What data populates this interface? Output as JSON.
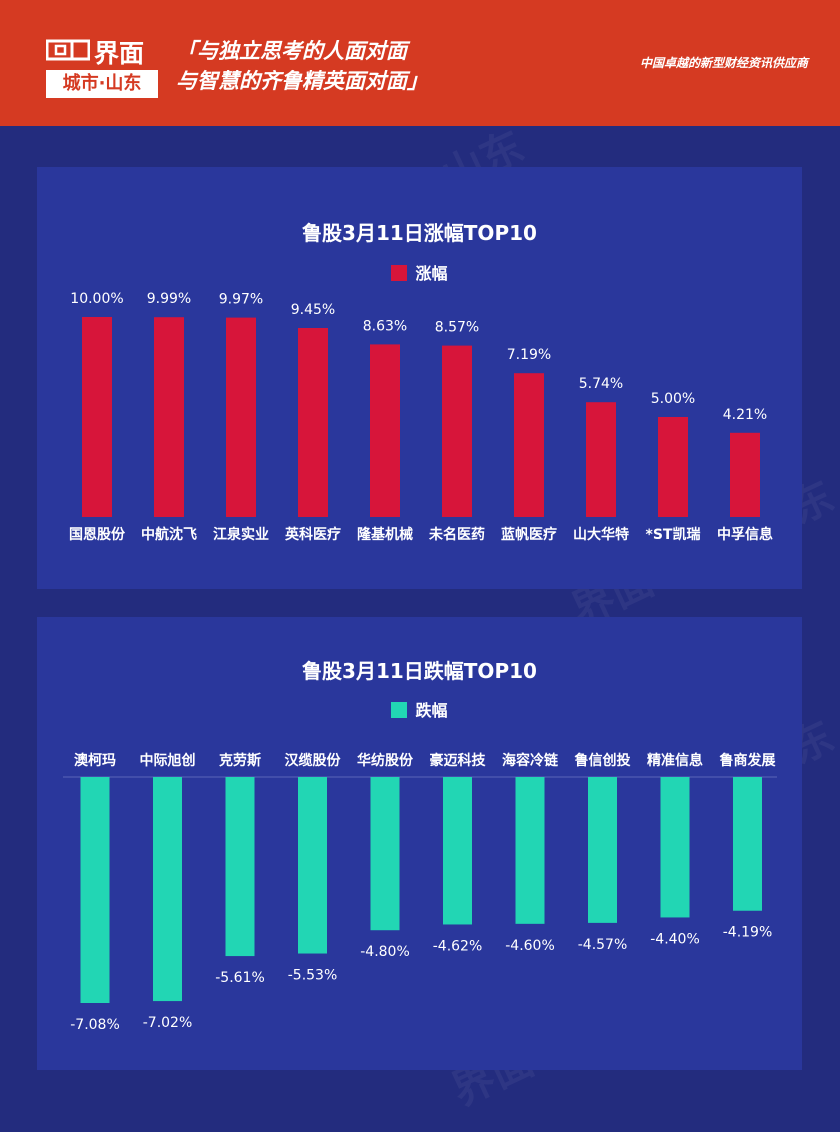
{
  "header": {
    "logo_main": "界面",
    "logo_sub": "城市·山东",
    "slogan_line1": "「与独立思考的人面对面",
    "slogan_line2": "与智慧的齐鲁精英面对面」",
    "tagline": "中国卓越的新型财经资讯供应商",
    "bg_color": "#d53a22"
  },
  "watermark_text": "界面 城市·山东",
  "chart_data": [
    {
      "type": "bar",
      "title": "鲁股3月11日涨幅TOP10",
      "series": [
        {
          "name": "涨幅",
          "color": "#d7153a",
          "values": [
            10.0,
            9.99,
            9.97,
            9.45,
            8.63,
            8.57,
            7.19,
            5.74,
            5.0,
            4.21
          ]
        }
      ],
      "categories": [
        "国恩股份",
        "中航沈飞",
        "江泉实业",
        "英科医疗",
        "隆基机械",
        "未名医药",
        "蓝帆医疗",
        "山大华特",
        "*ST凯瑞",
        "中孚信息"
      ],
      "labels": [
        "10.00%",
        "9.99%",
        "9.97%",
        "9.45%",
        "8.63%",
        "8.57%",
        "7.19%",
        "5.74%",
        "5.00%",
        "4.21%"
      ],
      "unit": "%",
      "ylim": [
        0,
        10
      ]
    },
    {
      "type": "bar",
      "title": "鲁股3月11日跌幅TOP10",
      "series": [
        {
          "name": "跌幅",
          "color": "#22d6b4",
          "values": [
            -7.08,
            -7.02,
            -5.61,
            -5.53,
            -4.8,
            -4.62,
            -4.6,
            -4.57,
            -4.4,
            -4.19
          ]
        }
      ],
      "categories": [
        "澳柯玛",
        "中际旭创",
        "克劳斯",
        "汉缆股份",
        "华纺股份",
        "豪迈科技",
        "海容冷链",
        "鲁信创投",
        "精准信息",
        "鲁商发展"
      ],
      "labels": [
        "-7.08%",
        "-7.02%",
        "-5.61%",
        "-5.53%",
        "-4.80%",
        "-4.62%",
        "-4.60%",
        "-4.57%",
        "-4.40%",
        "-4.19%"
      ],
      "unit": "%",
      "ylim": [
        -7.08,
        0
      ]
    }
  ]
}
